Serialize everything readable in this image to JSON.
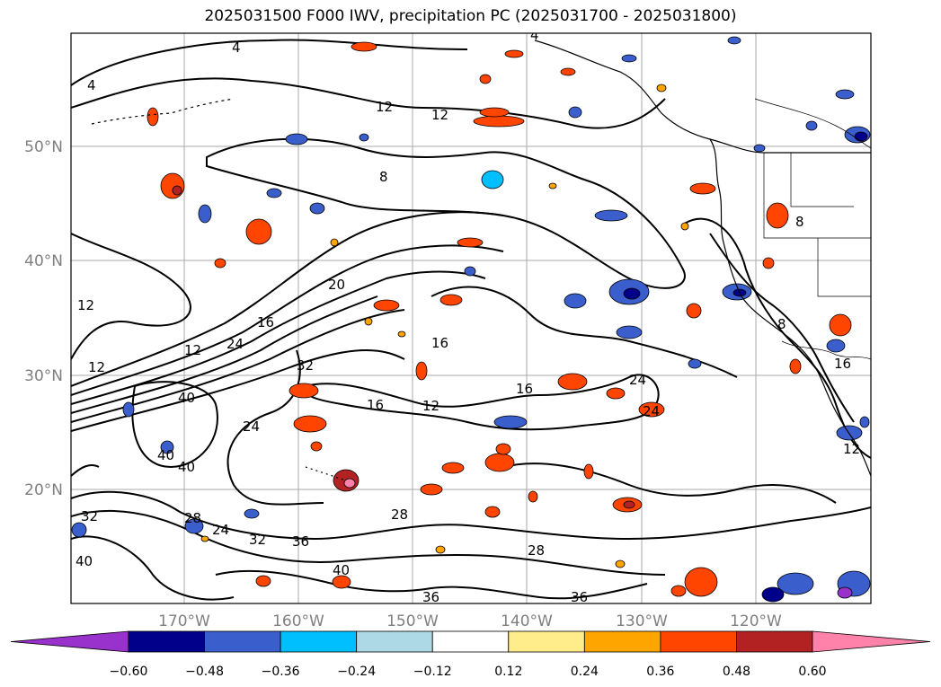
{
  "title": "2025031500 F000 IWV, precipitation PC (2025031700 - 2025031800)",
  "axes": {
    "lat_labels": [
      "20°N",
      "30°N",
      "40°N",
      "50°N"
    ],
    "lon_labels": [
      "170°W",
      "160°W",
      "150°W",
      "140°W",
      "130°W",
      "120°W"
    ]
  },
  "colorbar": {
    "ticks": [
      "−0.60",
      "−0.48",
      "−0.36",
      "−0.24",
      "−0.12",
      "0.12",
      "0.24",
      "0.36",
      "0.48",
      "0.60"
    ],
    "colors": [
      "#9932cc",
      "#00008b",
      "#3a5fcd",
      "#00bfff",
      "#add8e6",
      "#ffffff",
      "#ffec8b",
      "#ffa500",
      "#ff4500",
      "#b22222",
      "#ff82ab"
    ]
  },
  "contour_labels": [
    "4",
    "4",
    "4",
    "8",
    "8",
    "8",
    "12",
    "12",
    "12",
    "12",
    "12",
    "12",
    "16",
    "16",
    "16",
    "16",
    "16",
    "20",
    "24",
    "24",
    "24",
    "24",
    "24",
    "28",
    "28",
    "28",
    "32",
    "32",
    "36",
    "36",
    "36",
    "40",
    "40",
    "40",
    "40",
    "40",
    "32",
    "12"
  ]
}
